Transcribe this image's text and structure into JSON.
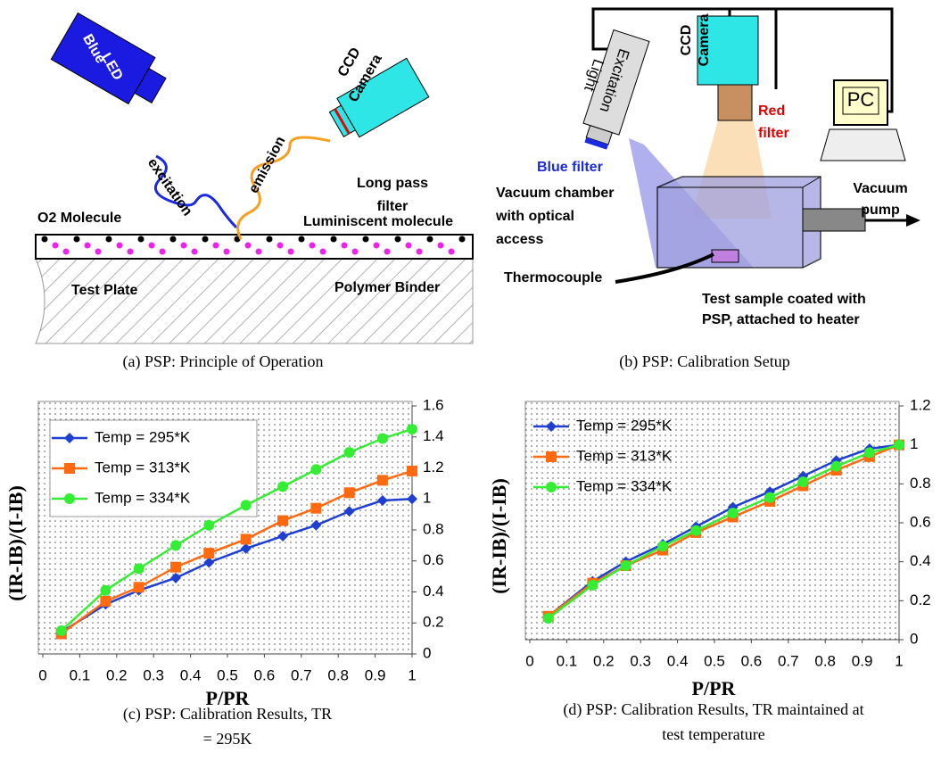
{
  "panel_a": {
    "led": [
      "Blue",
      "LED"
    ],
    "camera": [
      "CCD",
      "Camera"
    ],
    "excitation": "excitation",
    "emission": "emission",
    "filter": [
      "Long pass",
      "filter"
    ],
    "o2": "O2 Molecule",
    "luminiscent": "Luminiscent molecule",
    "plate": "Test Plate",
    "binder": "Polymer Binder",
    "caption": "(a)  PSP: Principle of Operation"
  },
  "panel_b": {
    "light": [
      "Excitation",
      "Light"
    ],
    "camera": [
      "CCD",
      "Camera"
    ],
    "pc": "PC",
    "red_filter": [
      "Red",
      "filter"
    ],
    "blue_filter": "Blue filter",
    "chamber": [
      "Vacuum chamber",
      "with optical",
      "access"
    ],
    "pump": [
      "Vacuum",
      "pump"
    ],
    "thermocouple": "Thermocouple",
    "sample": [
      "Test sample coated with",
      "PSP, attached to heater"
    ],
    "caption": "(b)  PSP: Calibration Setup"
  },
  "chart_data": [
    {
      "type": "line",
      "xlabel": "P/PR",
      "ylabel": "(IR-IB)/(I-IB)",
      "caption": [
        "(c)  PSP: Calibration Results, TR",
        "= 295K"
      ],
      "x": [
        0.05,
        0.17,
        0.26,
        0.36,
        0.45,
        0.55,
        0.65,
        0.74,
        0.83,
        0.92,
        1.0
      ],
      "series": [
        {
          "name": "Temp = 295*K",
          "color": "#1f3fd0",
          "marker": "diamond",
          "values": [
            0.14,
            0.32,
            0.41,
            0.49,
            0.59,
            0.68,
            0.76,
            0.83,
            0.92,
            0.99,
            1.0
          ]
        },
        {
          "name": "Temp = 313*K",
          "color": "#ff6a10",
          "marker": "square",
          "values": [
            0.13,
            0.34,
            0.43,
            0.56,
            0.65,
            0.74,
            0.86,
            0.94,
            1.04,
            1.12,
            1.18
          ]
        },
        {
          "name": "Temp = 334*K",
          "color": "#33ee33",
          "marker": "circle",
          "values": [
            0.15,
            0.41,
            0.55,
            0.7,
            0.83,
            0.96,
            1.08,
            1.19,
            1.3,
            1.39,
            1.45
          ]
        }
      ],
      "xlim": [
        0,
        1
      ],
      "xticks": [
        0,
        0.1,
        0.2,
        0.3,
        0.4,
        0.5,
        0.6,
        0.7,
        0.8,
        0.9,
        1
      ],
      "ylim": [
        0,
        1.6
      ],
      "yticks": [
        0,
        0.2,
        0.4,
        0.6,
        0.8,
        1,
        1.2,
        1.4,
        1.6
      ],
      "legend": "upper left"
    },
    {
      "type": "line",
      "xlabel": "P/PR",
      "ylabel": "(IR-IB)/(I-IB)",
      "caption": [
        "(d)  PSP: Calibration Results, TR maintained at",
        "test temperature"
      ],
      "x": [
        0.05,
        0.17,
        0.26,
        0.36,
        0.45,
        0.55,
        0.65,
        0.74,
        0.83,
        0.92,
        1.0
      ],
      "series": [
        {
          "name": "Temp = 295*K",
          "color": "#1f3fd0",
          "marker": "diamond",
          "values": [
            0.12,
            0.3,
            0.4,
            0.49,
            0.58,
            0.68,
            0.76,
            0.84,
            0.92,
            0.98,
            1.0
          ]
        },
        {
          "name": "Temp = 313*K",
          "color": "#ff6a10",
          "marker": "square",
          "values": [
            0.12,
            0.29,
            0.38,
            0.46,
            0.55,
            0.63,
            0.71,
            0.79,
            0.87,
            0.94,
            1.0
          ]
        },
        {
          "name": "Temp = 334*K",
          "color": "#33ee33",
          "marker": "circle",
          "values": [
            0.11,
            0.28,
            0.38,
            0.48,
            0.56,
            0.65,
            0.73,
            0.81,
            0.89,
            0.96,
            1.0
          ]
        }
      ],
      "xlim": [
        0,
        1
      ],
      "xticks": [
        0,
        0.1,
        0.2,
        0.3,
        0.4,
        0.5,
        0.6,
        0.7,
        0.8,
        0.9,
        1
      ],
      "ylim": [
        0,
        1.2
      ],
      "yticks": [
        0,
        0.2,
        0.4,
        0.6,
        0.8,
        1,
        1.2
      ],
      "legend": "upper left"
    }
  ]
}
